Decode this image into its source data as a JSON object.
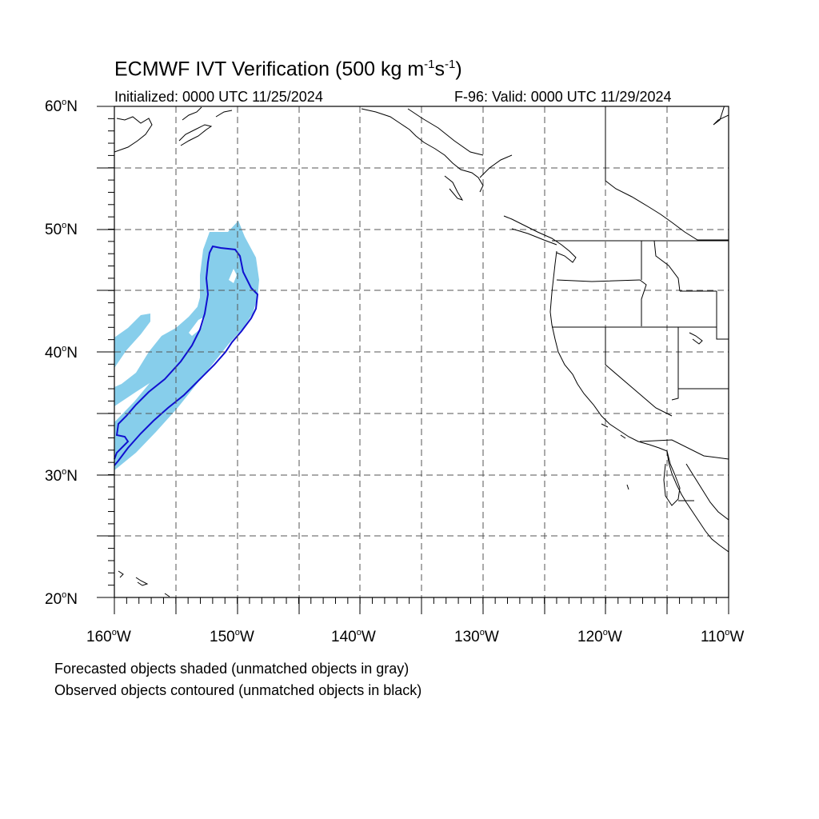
{
  "header": {
    "title_main": "ECMWF IVT Verification (500 kg m",
    "title_sup1": "-1",
    "title_mid": "s",
    "title_sup2": "-1",
    "title_end": ")",
    "initialized": "Initialized: 0000 UTC 11/25/2024",
    "valid": "F-96: Valid: 0000 UTC 11/29/2024"
  },
  "axes": {
    "lat_labels": [
      {
        "num": "60",
        "suf": "N"
      },
      {
        "num": "50",
        "suf": "N"
      },
      {
        "num": "40",
        "suf": "N"
      },
      {
        "num": "30",
        "suf": "N"
      },
      {
        "num": "20",
        "suf": "N"
      }
    ],
    "lon_labels": [
      {
        "num": "160",
        "suf": "W"
      },
      {
        "num": "150",
        "suf": "W"
      },
      {
        "num": "140",
        "suf": "W"
      },
      {
        "num": "130",
        "suf": "W"
      },
      {
        "num": "120",
        "suf": "W"
      },
      {
        "num": "110",
        "suf": "W"
      }
    ],
    "lat_range": [
      20,
      60
    ],
    "lon_range": [
      -160,
      -110
    ],
    "grid_spacing_deg": 5
  },
  "footer": {
    "line1": "Forecasted objects shaded (unmatched objects in gray)",
    "line2": "Observed objects contoured (unmatched objects in black)"
  },
  "colors": {
    "forecast_fill": "#87ceeb",
    "observed_contour": "#1010d0",
    "coast": "#000000",
    "grid": "#555555"
  }
}
